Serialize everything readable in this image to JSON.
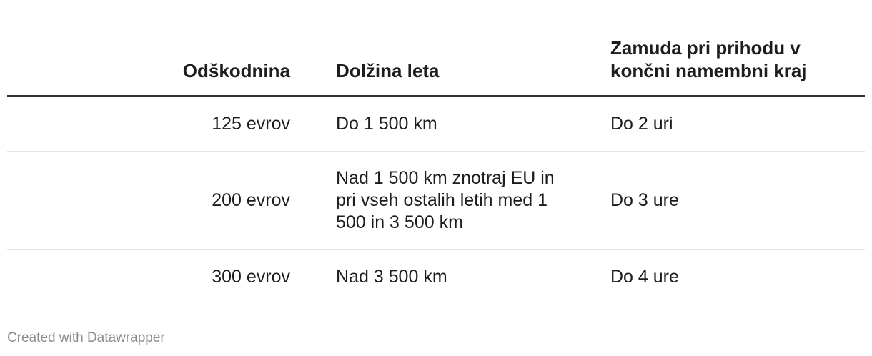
{
  "table": {
    "headers": [
      "Odškodnina",
      "Dolžina leta",
      "Zamuda pri prihodu v končni namembni kraj"
    ],
    "rows": [
      [
        "125 evrov",
        "Do 1 500 km",
        "Do 2 uri"
      ],
      [
        "200 evrov",
        "Nad 1 500 km znotraj EU in pri vseh ostalih letih med 1 500 in 3 500 km",
        "Do 3 ure"
      ],
      [
        "300 evrov",
        "Nad 3 500 km",
        "Do 4 ure"
      ]
    ]
  },
  "footer": {
    "credit": "Created with Datawrapper"
  }
}
